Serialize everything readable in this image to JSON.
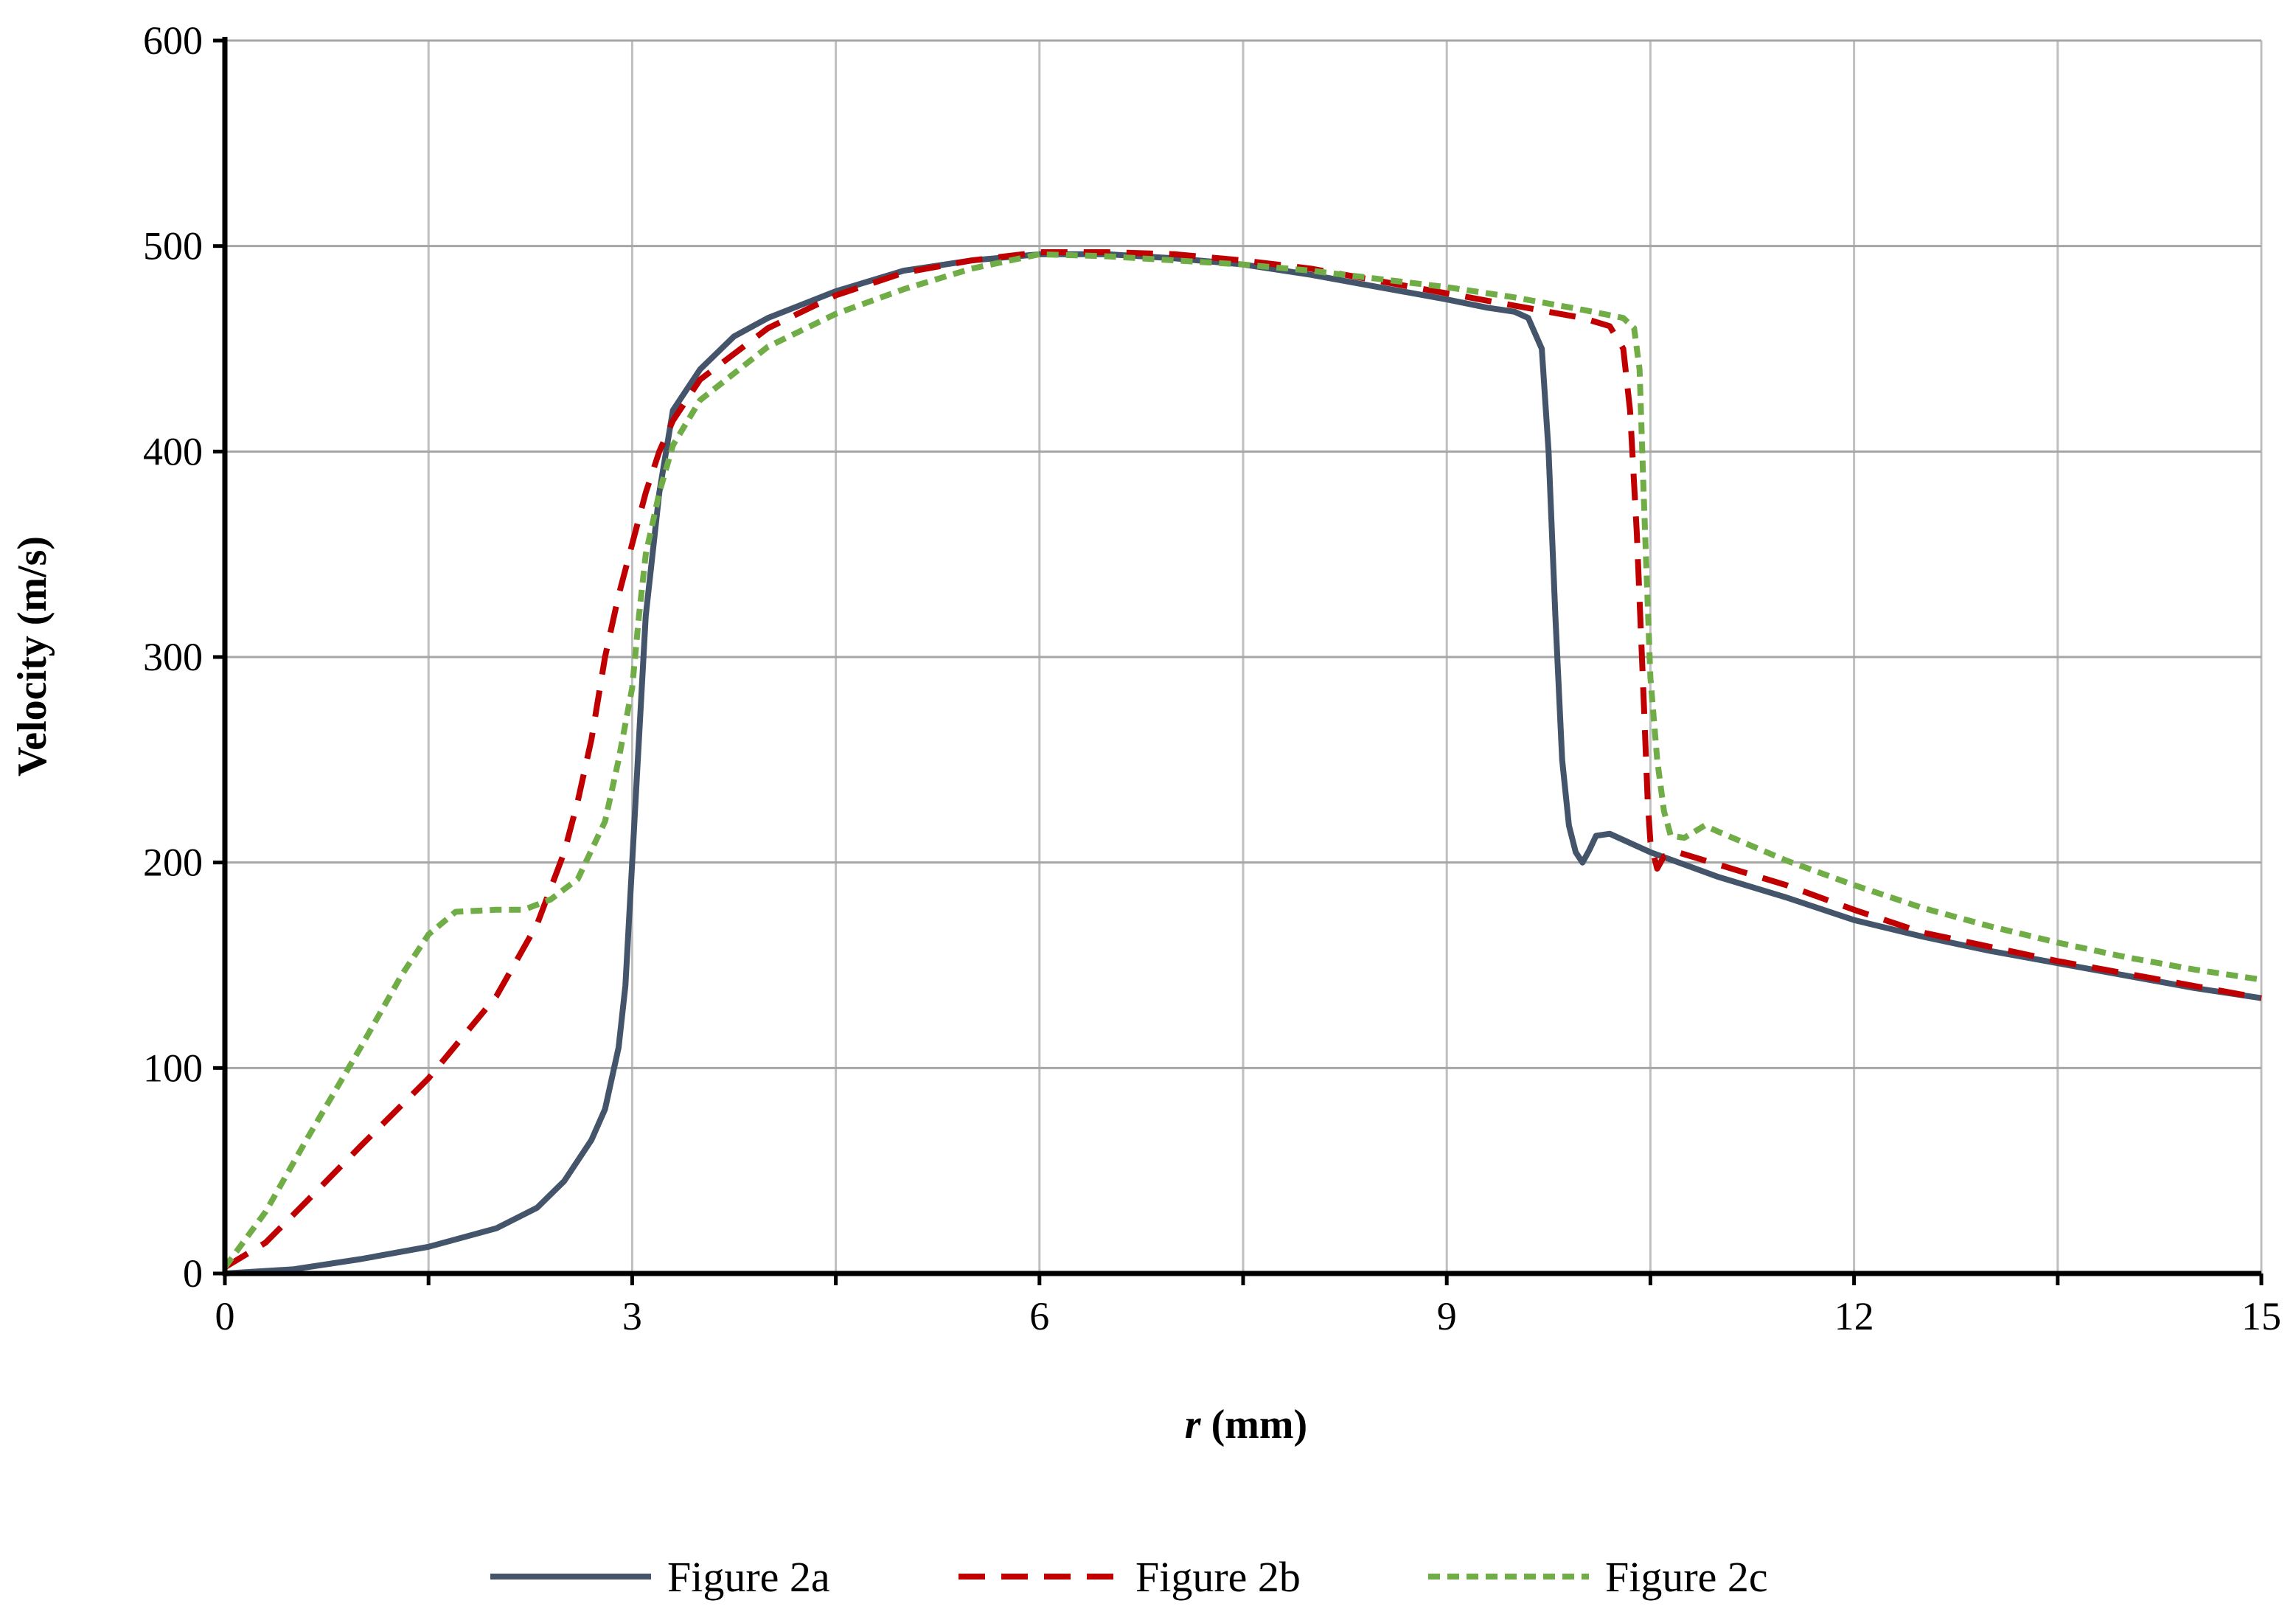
{
  "chart_data": {
    "type": "line",
    "title": "",
    "xlabel_italic": "r",
    "xlabel_rest": " (mm)",
    "ylabel": "Velocity (m/s)",
    "xlim": [
      0,
      15
    ],
    "ylim": [
      0,
      600
    ],
    "x_ticks": [
      0,
      3,
      6,
      9,
      12,
      15
    ],
    "x_gridlines": [
      0,
      1.5,
      3,
      4.5,
      6,
      7.5,
      9,
      10.5,
      12,
      13.5,
      15
    ],
    "y_ticks": [
      0,
      100,
      200,
      300,
      400,
      500,
      600
    ],
    "grid": true,
    "legend_position": "bottom",
    "series": [
      {
        "name": "Figure 2a",
        "color": "#44546a",
        "style": "solid",
        "points": [
          [
            0,
            0
          ],
          [
            0.5,
            2
          ],
          [
            1,
            7
          ],
          [
            1.5,
            13
          ],
          [
            2,
            22
          ],
          [
            2.3,
            32
          ],
          [
            2.5,
            45
          ],
          [
            2.7,
            65
          ],
          [
            2.8,
            80
          ],
          [
            2.9,
            110
          ],
          [
            2.95,
            140
          ],
          [
            3,
            200
          ],
          [
            3.05,
            260
          ],
          [
            3.1,
            320
          ],
          [
            3.2,
            380
          ],
          [
            3.3,
            420
          ],
          [
            3.5,
            440
          ],
          [
            3.75,
            456
          ],
          [
            4,
            465
          ],
          [
            4.5,
            478
          ],
          [
            5,
            488
          ],
          [
            5.5,
            493
          ],
          [
            6,
            496
          ],
          [
            6.5,
            496
          ],
          [
            7,
            494
          ],
          [
            7.5,
            491
          ],
          [
            8,
            486
          ],
          [
            8.5,
            480
          ],
          [
            9,
            474
          ],
          [
            9.3,
            470
          ],
          [
            9.5,
            468
          ],
          [
            9.6,
            465
          ],
          [
            9.7,
            450
          ],
          [
            9.75,
            400
          ],
          [
            9.8,
            320
          ],
          [
            9.85,
            250
          ],
          [
            9.9,
            218
          ],
          [
            9.95,
            205
          ],
          [
            10,
            200
          ],
          [
            10.05,
            206
          ],
          [
            10.1,
            213
          ],
          [
            10.2,
            214
          ],
          [
            10.5,
            205
          ],
          [
            11,
            193
          ],
          [
            11.5,
            183
          ],
          [
            12,
            172
          ],
          [
            12.5,
            164
          ],
          [
            13,
            157
          ],
          [
            13.5,
            151
          ],
          [
            14,
            145
          ],
          [
            14.5,
            139
          ],
          [
            15,
            134
          ]
        ]
      },
      {
        "name": "Figure 2b",
        "color": "#c00000",
        "style": "dash",
        "points": [
          [
            0,
            3
          ],
          [
            0.3,
            15
          ],
          [
            0.6,
            35
          ],
          [
            1,
            62
          ],
          [
            1.5,
            95
          ],
          [
            2,
            135
          ],
          [
            2.3,
            170
          ],
          [
            2.5,
            205
          ],
          [
            2.6,
            230
          ],
          [
            2.7,
            260
          ],
          [
            2.8,
            300
          ],
          [
            2.9,
            330
          ],
          [
            3,
            355
          ],
          [
            3.1,
            380
          ],
          [
            3.2,
            400
          ],
          [
            3.3,
            415
          ],
          [
            3.5,
            435
          ],
          [
            4,
            460
          ],
          [
            4.5,
            476
          ],
          [
            5,
            487
          ],
          [
            5.5,
            493
          ],
          [
            6,
            497
          ],
          [
            6.5,
            497
          ],
          [
            7,
            496
          ],
          [
            7.5,
            493
          ],
          [
            8,
            489
          ],
          [
            8.5,
            483
          ],
          [
            9,
            477
          ],
          [
            9.5,
            471
          ],
          [
            10,
            465
          ],
          [
            10.2,
            461
          ],
          [
            10.3,
            450
          ],
          [
            10.35,
            420
          ],
          [
            10.4,
            360
          ],
          [
            10.45,
            280
          ],
          [
            10.48,
            230
          ],
          [
            10.5,
            210
          ],
          [
            10.55,
            197
          ],
          [
            10.6,
            203
          ],
          [
            10.7,
            205
          ],
          [
            11,
            199
          ],
          [
            11.5,
            189
          ],
          [
            12,
            177
          ],
          [
            12.5,
            166
          ],
          [
            13,
            159
          ],
          [
            13.5,
            152
          ],
          [
            14,
            146
          ],
          [
            14.5,
            140
          ],
          [
            15,
            134
          ]
        ]
      },
      {
        "name": "Figure 2c",
        "color": "#70ad47",
        "style": "short-dash",
        "points": [
          [
            0,
            3
          ],
          [
            0.3,
            30
          ],
          [
            0.6,
            65
          ],
          [
            1,
            110
          ],
          [
            1.3,
            145
          ],
          [
            1.5,
            165
          ],
          [
            1.7,
            176
          ],
          [
            2,
            177
          ],
          [
            2.2,
            177
          ],
          [
            2.4,
            182
          ],
          [
            2.6,
            192
          ],
          [
            2.8,
            220
          ],
          [
            2.9,
            250
          ],
          [
            3,
            285
          ],
          [
            3.05,
            320
          ],
          [
            3.1,
            350
          ],
          [
            3.2,
            380
          ],
          [
            3.3,
            403
          ],
          [
            3.5,
            425
          ],
          [
            4,
            451
          ],
          [
            4.5,
            467
          ],
          [
            5,
            479
          ],
          [
            5.5,
            489
          ],
          [
            6,
            496
          ],
          [
            6.5,
            495
          ],
          [
            7,
            493
          ],
          [
            7.5,
            491
          ],
          [
            8,
            488
          ],
          [
            8.5,
            484
          ],
          [
            9,
            480
          ],
          [
            9.5,
            475
          ],
          [
            10,
            469
          ],
          [
            10.3,
            465
          ],
          [
            10.38,
            460
          ],
          [
            10.42,
            440
          ],
          [
            10.45,
            380
          ],
          [
            10.5,
            290
          ],
          [
            10.55,
            250
          ],
          [
            10.6,
            225
          ],
          [
            10.65,
            213
          ],
          [
            10.75,
            212
          ],
          [
            10.9,
            218
          ],
          [
            11,
            215
          ],
          [
            11.5,
            201
          ],
          [
            12,
            189
          ],
          [
            12.5,
            178
          ],
          [
            13,
            169
          ],
          [
            13.5,
            161
          ],
          [
            14,
            154
          ],
          [
            14.5,
            148
          ],
          [
            15,
            143
          ]
        ]
      }
    ]
  }
}
